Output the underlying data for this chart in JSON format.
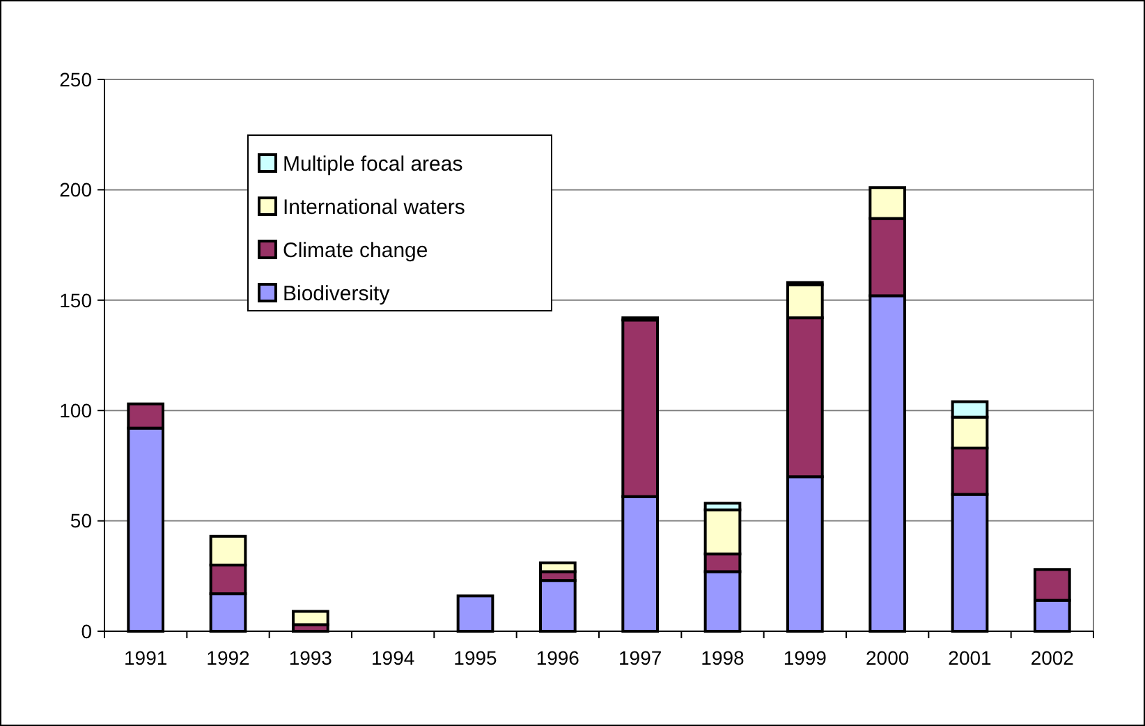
{
  "chart_data": {
    "type": "bar",
    "stacked": true,
    "categories": [
      "1991",
      "1992",
      "1993",
      "1994",
      "1995",
      "1996",
      "1997",
      "1998",
      "1999",
      "2000",
      "2001",
      "2002"
    ],
    "series": [
      {
        "name": "Biodiversity",
        "color": "#9999ff",
        "values": [
          92,
          17,
          0,
          0,
          16,
          23,
          61,
          27,
          70,
          152,
          62,
          14
        ]
      },
      {
        "name": "Climate change",
        "color": "#993366",
        "values": [
          11,
          13,
          3,
          0,
          0,
          4,
          80,
          8,
          72,
          35,
          21,
          14
        ]
      },
      {
        "name": "International waters",
        "color": "#ffffcc",
        "values": [
          0,
          13,
          6,
          0,
          0,
          4,
          1,
          20,
          15,
          14,
          14,
          0
        ]
      },
      {
        "name": "Multiple focal areas",
        "color": "#ccffff",
        "values": [
          0,
          0,
          0,
          0,
          0,
          0,
          0,
          3,
          1,
          0,
          7,
          0
        ]
      }
    ],
    "ylim": [
      0,
      250
    ],
    "yticks": [
      0,
      50,
      100,
      150,
      200,
      250
    ],
    "grid": "y",
    "legend": "top left"
  }
}
